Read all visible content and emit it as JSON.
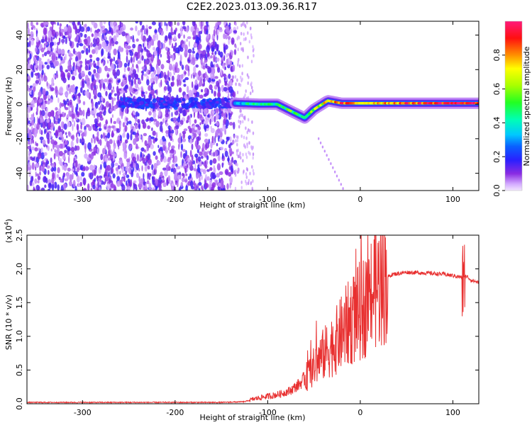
{
  "title": "C2E2.2023.013.09.36.R17",
  "chart_data": [
    {
      "type": "heatmap",
      "xlabel": "Height of straight line (km)",
      "ylabel": "Frequency (Hz)",
      "xlim": [
        -360,
        128
      ],
      "ylim": [
        -50,
        48
      ],
      "x_ticks": [
        -300,
        -200,
        -100,
        0,
        100
      ],
      "y_ticks": [
        -40,
        -20,
        0,
        20,
        40
      ],
      "colorbar": {
        "label": "Normalized spectral amplitude",
        "range": [
          0,
          1
        ],
        "ticks": [
          "0.0",
          "0.2",
          "0.4",
          "0.6",
          "0.8"
        ],
        "tick_values": [
          0.0,
          0.2,
          0.4,
          0.6,
          0.8
        ]
      },
      "features": {
        "noise_region_x": [
          -360,
          -135
        ],
        "sparse_region_x": [
          -135,
          -115
        ],
        "signal_ridge": [
          {
            "x": -135,
            "f": 0.5,
            "amp": 0.35
          },
          {
            "x": -110,
            "f": 0.0,
            "amp": 0.4
          },
          {
            "x": -90,
            "f": 0.0,
            "amp": 0.45
          },
          {
            "x": -75,
            "f": -4,
            "amp": 0.5
          },
          {
            "x": -60,
            "f": -8,
            "amp": 0.45
          },
          {
            "x": -50,
            "f": -3,
            "amp": 0.6
          },
          {
            "x": -35,
            "f": 2,
            "amp": 0.75
          },
          {
            "x": -20,
            "f": 0.5,
            "amp": 0.85
          },
          {
            "x": 0,
            "f": 0.5,
            "amp": 0.75
          },
          {
            "x": 50,
            "f": 0.5,
            "amp": 0.85
          },
          {
            "x": 100,
            "f": 0.5,
            "amp": 0.95
          },
          {
            "x": 128,
            "f": 0.5,
            "amp": 0.9
          }
        ]
      }
    },
    {
      "type": "line",
      "xlabel": "Height of straight line (km)",
      "ylabel": "SNR (10 * v/v)",
      "y_multiplier": "(x10",
      "y_multiplier_exp": "4",
      "y_multiplier_close": ")",
      "xlim": [
        -360,
        128
      ],
      "ylim": [
        0,
        2.5
      ],
      "x_ticks": [
        -300,
        -200,
        -100,
        0,
        100
      ],
      "y_ticks": [
        "0.0",
        "0.5",
        "1.0",
        "1.5",
        "2.0",
        "2.5"
      ],
      "y_tick_values": [
        0.0,
        0.5,
        1.0,
        1.5,
        2.0,
        2.5
      ],
      "color": "#e83030",
      "series": [
        {
          "x": [
            -360,
            -300,
            -200,
            -150,
            -125,
            -115,
            -105,
            -95,
            -85,
            -75,
            -65,
            -55,
            -45,
            -35,
            -25,
            -15,
            -5,
            5,
            15,
            25,
            35,
            50,
            70,
            90,
            100,
            108,
            111,
            113,
            116,
            120,
            128
          ],
          "values": [
            0.02,
            0.02,
            0.02,
            0.02,
            0.03,
            0.07,
            0.1,
            0.12,
            0.15,
            0.2,
            0.3,
            0.45,
            0.65,
            0.8,
            0.95,
            1.15,
            1.3,
            1.45,
            1.7,
            1.85,
            1.92,
            1.95,
            1.94,
            1.92,
            1.9,
            1.88,
            1.85,
            1.9,
            1.88,
            1.83,
            1.8
          ]
        }
      ]
    }
  ]
}
